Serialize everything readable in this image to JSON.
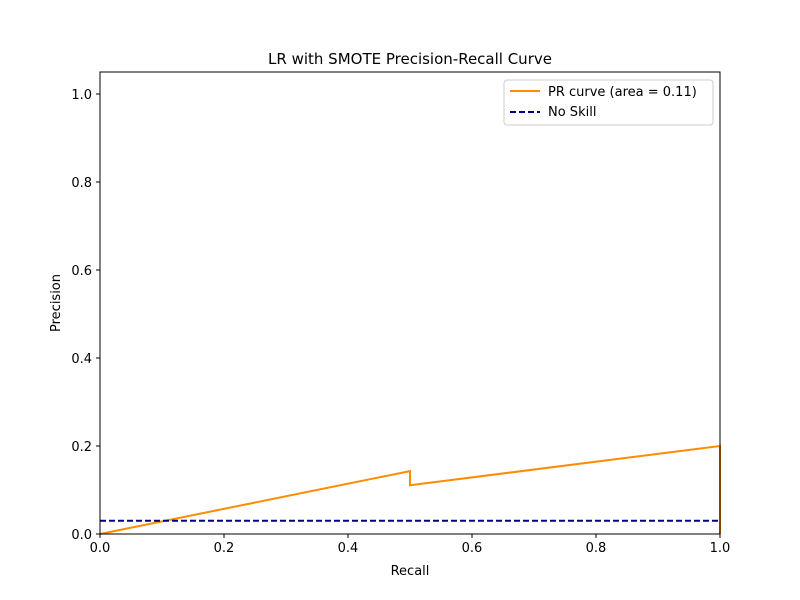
{
  "chart_data": {
    "type": "line",
    "title": "LR with SMOTE Precision-Recall Curve",
    "xlabel": "Recall",
    "ylabel": "Precision",
    "xlim": [
      0.0,
      1.0
    ],
    "ylim": [
      0.0,
      1.05
    ],
    "xticks": [
      0.0,
      0.2,
      0.4,
      0.6,
      0.8,
      1.0
    ],
    "xtick_labels": [
      "0.0",
      "0.2",
      "0.4",
      "0.6",
      "0.8",
      "1.0"
    ],
    "yticks": [
      0.0,
      0.2,
      0.4,
      0.6,
      0.8,
      1.0
    ],
    "ytick_labels": [
      "0.0",
      "0.2",
      "0.4",
      "0.6",
      "0.8",
      "1.0"
    ],
    "grid": false,
    "legend_position": "top-right",
    "series": [
      {
        "name": "PR curve (area = 0.11)",
        "color": "#ff8c00",
        "style": "solid",
        "x": [
          0.0,
          0.5,
          0.5,
          1.0,
          1.0
        ],
        "y": [
          0.0,
          0.143,
          0.111,
          0.2,
          0.0
        ]
      },
      {
        "name": "No Skill",
        "color": "#000080",
        "style": "dashed",
        "x": [
          0.0,
          1.0
        ],
        "y": [
          0.03,
          0.03
        ]
      }
    ]
  }
}
